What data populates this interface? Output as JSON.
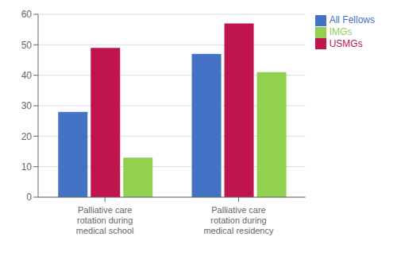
{
  "chart_data": {
    "type": "bar",
    "categories": [
      "Palliative care\nrotation during\nmedical school",
      "Palliative care\nrotation during\nmedical residency"
    ],
    "series": [
      {
        "name": "All Fellows",
        "color": "#4472C4",
        "values": [
          28,
          47
        ]
      },
      {
        "name": "USMGs",
        "color": "#C0144C",
        "values": [
          49,
          57
        ]
      },
      {
        "name": "IMGs",
        "color": "#92D050",
        "values": [
          13,
          41
        ]
      }
    ],
    "ylim": [
      0,
      60
    ],
    "yticks": [
      0,
      10,
      20,
      30,
      40,
      50,
      60
    ],
    "grid": true,
    "legend": "right"
  }
}
